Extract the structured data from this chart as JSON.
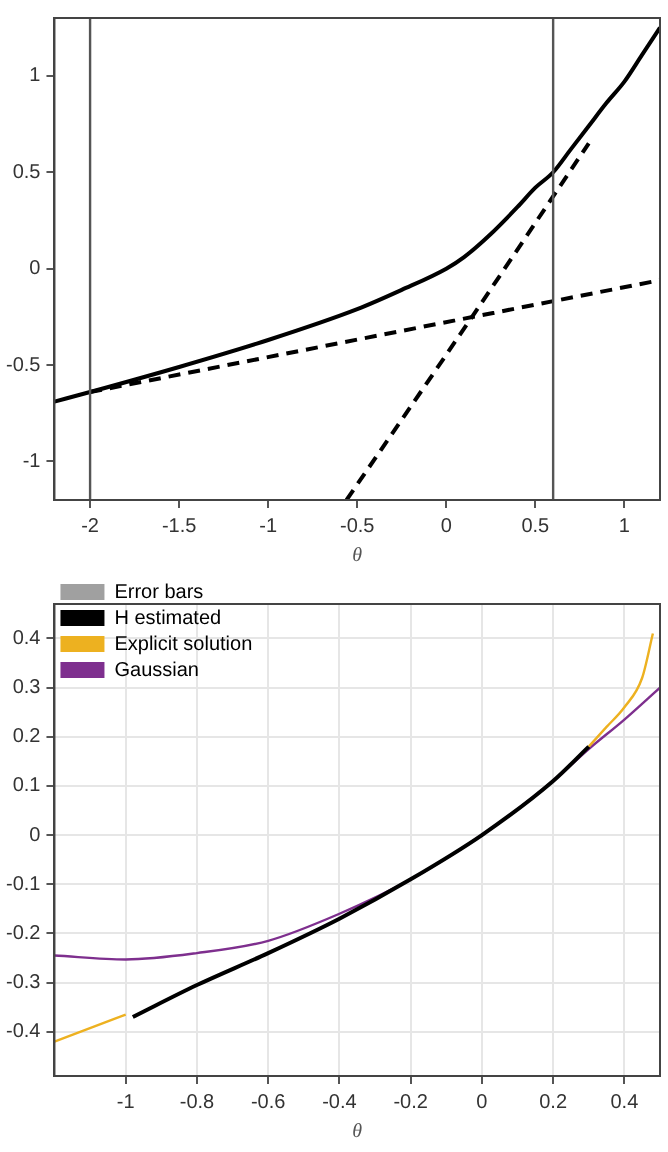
{
  "chart_data": [
    {
      "type": "line",
      "xlabel": "θ",
      "xlim": [
        -2.2,
        1.2
      ],
      "ylim": [
        -1.2,
        1.3
      ],
      "xticks": [
        -2,
        -1.5,
        -1,
        -0.5,
        0,
        0.5,
        1
      ],
      "yticks": [
        -1,
        -0.5,
        0,
        0.5,
        1
      ],
      "grid": false,
      "legend": false,
      "marker": "none",
      "series": [
        {
          "color": "#000000",
          "line_style": "solid",
          "x": [
            -2.2,
            -2,
            -1.5,
            -1,
            -0.5,
            -0.25,
            0,
            0.1,
            0.25,
            0.4,
            0.5,
            0.6,
            0.7,
            0.8,
            0.9,
            1.0,
            1.1,
            1.2
          ],
          "values": [
            -0.69,
            -0.64,
            -0.51,
            -0.37,
            -0.21,
            -0.11,
            0,
            0.06,
            0.18,
            0.32,
            0.42,
            0.5,
            0.62,
            0.74,
            0.86,
            0.97,
            1.11,
            1.25
          ]
        },
        {
          "color": "#000000",
          "line_style": "dashed",
          "x": [
            -2,
            1.2
          ],
          "values": [
            -0.64,
            -0.06
          ]
        },
        {
          "color": "#000000",
          "line_style": "dashed",
          "x": [
            -0.56,
            0.13,
            0.8
          ],
          "values": [
            -1.2,
            -0.27,
            0.65
          ]
        }
      ],
      "ref_lines": [
        {
          "axis": "x",
          "value": -2,
          "color": "#555555"
        },
        {
          "axis": "x",
          "value": 0.6,
          "color": "#555555"
        }
      ]
    },
    {
      "type": "line",
      "xlabel": "θ",
      "xlim": [
        -1.2,
        0.5
      ],
      "ylim": [
        -0.49,
        0.47
      ],
      "xticks": [
        -1,
        -0.8,
        -0.6,
        -0.4,
        -0.2,
        0,
        0.2,
        0.4
      ],
      "yticks": [
        -0.4,
        -0.3,
        -0.2,
        -0.1,
        0,
        0.1,
        0.2,
        0.3,
        0.4
      ],
      "grid": true,
      "legend": "top left",
      "marker": "none",
      "series": [
        {
          "name": "Error bars",
          "type": "area",
          "color": "#a0a0a0"
        },
        {
          "name": "H estimated",
          "color": "#000000",
          "line_style": "solid",
          "x": [
            -0.98,
            -0.8,
            -0.6,
            -0.4,
            -0.2,
            0,
            0.2,
            0.3
          ],
          "values": [
            -0.37,
            -0.305,
            -0.24,
            -0.17,
            -0.09,
            0,
            0.11,
            0.18
          ]
        },
        {
          "name": "Explicit solution",
          "color": "#edb120",
          "line_style": "solid",
          "x": [
            -1.2,
            -1,
            -0.8,
            -0.6,
            -0.4,
            -0.2,
            0,
            0.2,
            0.3,
            0.35,
            0.4,
            0.45,
            0.48
          ],
          "values": [
            -0.42,
            -0.365,
            null,
            null,
            null,
            null,
            null,
            null,
            0.18,
            0.22,
            0.26,
            0.32,
            0.41
          ]
        },
        {
          "name": "Gaussian",
          "color": "#7e2f8e",
          "line_style": "solid",
          "x": [
            -1.2,
            -1,
            -0.8,
            -0.6,
            -0.4,
            -0.2,
            0,
            0.2,
            0.3,
            0.4,
            0.5
          ],
          "values": [
            -0.245,
            -0.253,
            -0.24,
            -0.215,
            -0.16,
            -0.09,
            0,
            0.11,
            0.175,
            0.235,
            0.3
          ]
        }
      ]
    }
  ]
}
